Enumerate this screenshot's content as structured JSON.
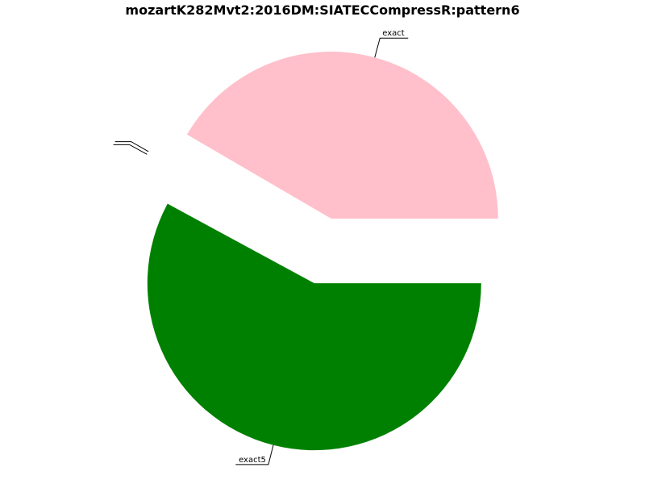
{
  "chart_data": {
    "type": "pie",
    "title": "mozartK282Mvt2:2016DM:SIATECCompressR:pattern6",
    "start_angle_deg": 0,
    "direction": "clockwise",
    "legend": "none",
    "slices": [
      {
        "label": "exact5",
        "value": 57.9,
        "color": "#008000",
        "exploded": true
      },
      {
        "label": "",
        "value": 0.2,
        "color": "#ffffff",
        "exploded": true
      },
      {
        "label": "",
        "value": 0.3,
        "color": "#ffffff",
        "exploded": true
      },
      {
        "label": "exact",
        "value": 41.6,
        "color": "#ffc0cb",
        "exploded": true
      }
    ]
  }
}
